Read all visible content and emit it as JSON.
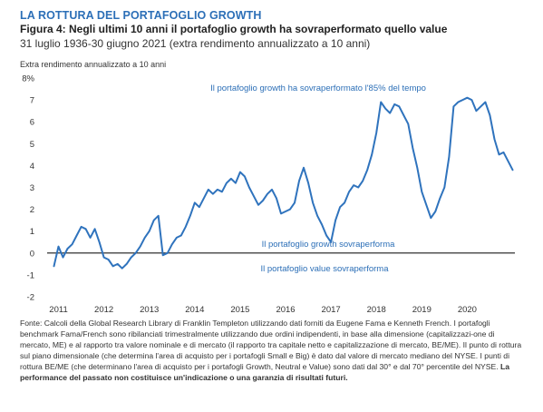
{
  "header": {
    "title": "LA ROTTURA DEL PORTAFOGLIO GROWTH",
    "subtitle": "Figura 4: Negli ultimi 10 anni il portafoglio growth ha sovraperformato quello value",
    "period": "31 luglio 1936-30 giugno 2021 (extra rendimento annualizzato a 10 anni)"
  },
  "colors": {
    "accent": "#2c6fb7",
    "line": "#2f73bd",
    "zero_line": "#1a1a1a"
  },
  "chart_data": {
    "type": "line",
    "ylabel": "Extra rendimento annualizzato a 10 anni",
    "ylim": [
      -2,
      8
    ],
    "xlim": [
      2010.75,
      2021.05
    ],
    "y_ticks": [
      "-2",
      "-1",
      "0",
      "1",
      "2",
      "3",
      "4",
      "5",
      "6",
      "7",
      "8%"
    ],
    "x_ticks": [
      "2011",
      "2012",
      "2013",
      "2014",
      "2015",
      "2016",
      "2017",
      "2018",
      "2019",
      "2020"
    ],
    "grid": false,
    "annotations": [
      "Il portafoglio growth ha sovraperformato l'85% del tempo",
      "Il portafoglio growth sovraperforma",
      "Il portafoglio value sovraperforma"
    ],
    "series": [
      {
        "x": [
          2010.9,
          2011.0,
          2011.1,
          2011.2,
          2011.3,
          2011.4,
          2011.5,
          2011.6,
          2011.7,
          2011.8,
          2011.9,
          2012.0,
          2012.1,
          2012.2,
          2012.3,
          2012.4,
          2012.5,
          2012.6,
          2012.7,
          2012.8,
          2012.9,
          2013.0,
          2013.1,
          2013.2,
          2013.3,
          2013.4,
          2013.5,
          2013.6,
          2013.7,
          2013.8,
          2013.9,
          2014.0,
          2014.1,
          2014.2,
          2014.3,
          2014.4,
          2014.5,
          2014.6,
          2014.7,
          2014.8,
          2014.9,
          2015.0,
          2015.1,
          2015.2,
          2015.3,
          2015.4,
          2015.5,
          2015.6,
          2015.7,
          2015.8,
          2015.9,
          2016.0,
          2016.1,
          2016.2,
          2016.3,
          2016.4,
          2016.5,
          2016.6,
          2016.7,
          2016.8,
          2016.9,
          2017.0,
          2017.1,
          2017.2,
          2017.3,
          2017.4,
          2017.5,
          2017.6,
          2017.7,
          2017.8,
          2017.9,
          2018.0,
          2018.1,
          2018.2,
          2018.3,
          2018.4,
          2018.5,
          2018.6,
          2018.7,
          2018.8,
          2018.9,
          2019.0,
          2019.1,
          2019.2,
          2019.3,
          2019.4,
          2019.5,
          2019.6,
          2019.7,
          2019.8,
          2019.9,
          2020.0,
          2020.1,
          2020.2,
          2020.3,
          2020.4,
          2020.5,
          2020.6,
          2020.7,
          2020.8,
          2020.9,
          2021.0
        ],
        "values": [
          -0.6,
          0.3,
          -0.2,
          0.2,
          0.4,
          0.8,
          1.2,
          1.1,
          0.7,
          1.1,
          0.5,
          -0.2,
          -0.3,
          -0.6,
          -0.5,
          -0.7,
          -0.5,
          -0.2,
          0.0,
          0.3,
          0.7,
          1.0,
          1.5,
          1.7,
          -0.1,
          0.0,
          0.4,
          0.7,
          0.8,
          1.2,
          1.7,
          2.3,
          2.1,
          2.5,
          2.9,
          2.7,
          2.9,
          2.8,
          3.2,
          3.4,
          3.2,
          3.7,
          3.5,
          3.0,
          2.6,
          2.2,
          2.4,
          2.7,
          2.9,
          2.5,
          1.8,
          1.9,
          2.0,
          2.3,
          3.3,
          3.9,
          3.2,
          2.3,
          1.7,
          1.3,
          0.8,
          0.5,
          1.5,
          2.1,
          2.3,
          2.8,
          3.1,
          3.0,
          3.3,
          3.8,
          4.5,
          5.5,
          6.9,
          6.6,
          6.4,
          6.8,
          6.7,
          6.3,
          5.9,
          4.8,
          3.9,
          2.8,
          2.2,
          1.6,
          1.9,
          2.5,
          3.0,
          4.4,
          6.7,
          6.9,
          7.0,
          7.1,
          7.0,
          6.5,
          6.7,
          6.9,
          6.3,
          5.2,
          4.5,
          4.6,
          4.2,
          3.8
        ]
      }
    ]
  },
  "footnote": {
    "text": "Fonte: Calcoli della Global Research Library di Franklin Templeton utilizzando dati forniti da Eugene Fama e Kenneth French. I portafogli benchmark Fama/French sono ribilanciati trimestralmente utilizzando due ordini indipendenti, in base alla dimensione (capitalizzazi-one di mercato, ME) e al rapporto tra valore nominale e di mercato (il rapporto tra capitale netto e capitalizzazione di mercato, BE/ME). Il punto di rottura sul piano dimensionale (che determina l'area di acquisto per i portafogli Small e Big) è dato dal valore di mercato mediano del NYSE. I punti di rottura BE/ME (che determinano l'area di acquisto per i portafogli Growth, Neutral e Value) sono dati dal 30° e dal 70° percentile del NYSE.",
    "bold_text": "La performance del passato non costituisce un'indicazione o una garanzia di risultati futuri."
  }
}
